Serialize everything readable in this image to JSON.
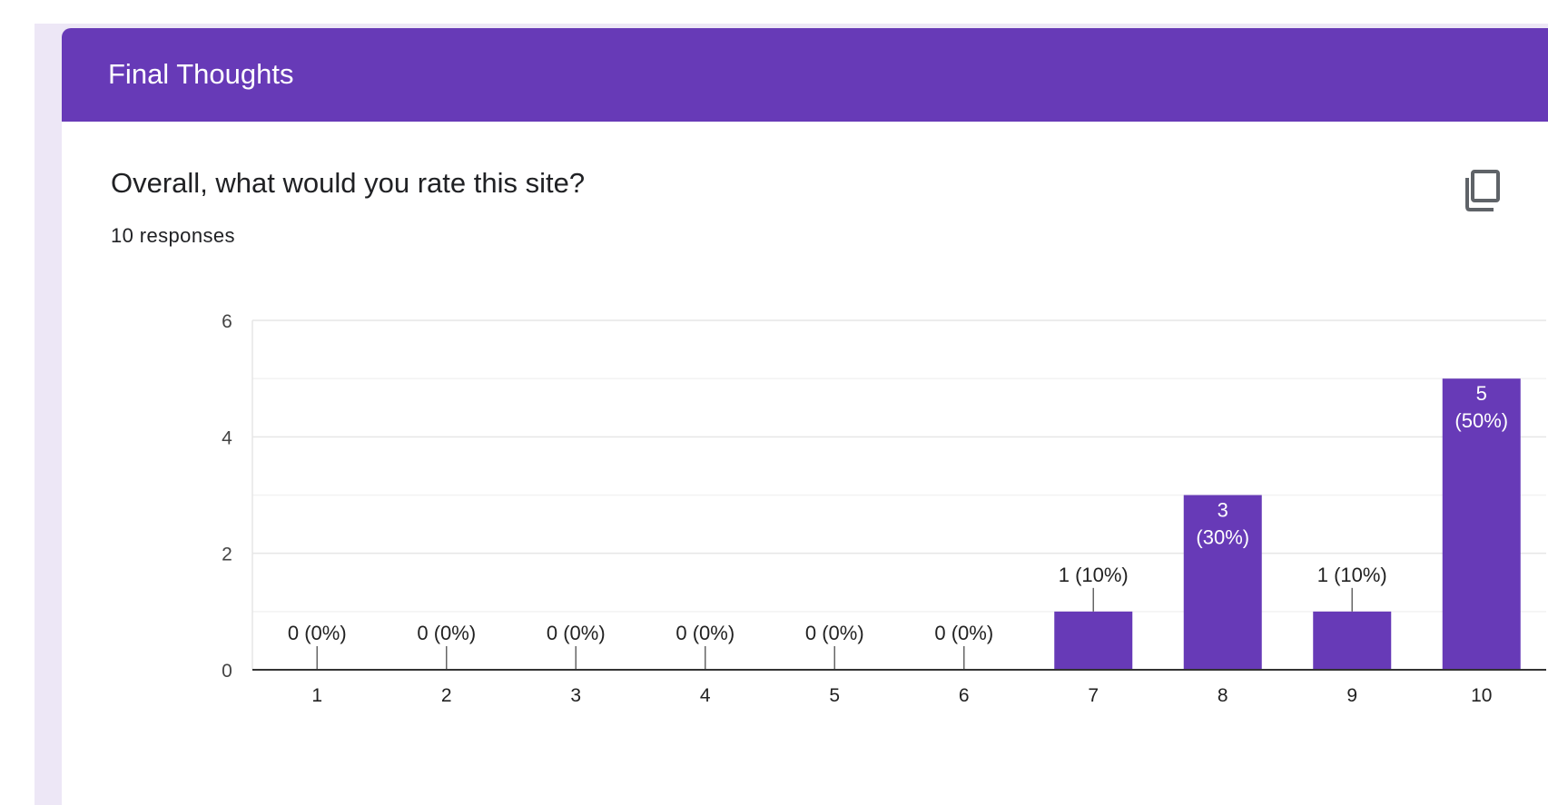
{
  "section": {
    "title": "Final Thoughts"
  },
  "question": {
    "text": "Overall, what would you rate this site?",
    "responses": "10 responses",
    "copy_icon": "copy-chart-icon"
  },
  "colors": {
    "accent": "#673ab7",
    "background": "#ede7f6"
  },
  "chart_data": {
    "type": "bar",
    "categories": [
      "1",
      "2",
      "3",
      "4",
      "5",
      "6",
      "7",
      "8",
      "9",
      "10"
    ],
    "values": [
      0,
      0,
      0,
      0,
      0,
      0,
      1,
      3,
      1,
      5
    ],
    "data_labels": [
      "0 (0%)",
      "0 (0%)",
      "0 (0%)",
      "0 (0%)",
      "0 (0%)",
      "0 (0%)",
      "1 (10%)",
      "3\n(30%)",
      "1 (10%)",
      "5\n(50%)"
    ],
    "ylim": [
      0,
      6
    ],
    "yticks": [
      "0",
      "2",
      "4",
      "6"
    ],
    "grid": true,
    "bar_color": "#673ab7"
  }
}
